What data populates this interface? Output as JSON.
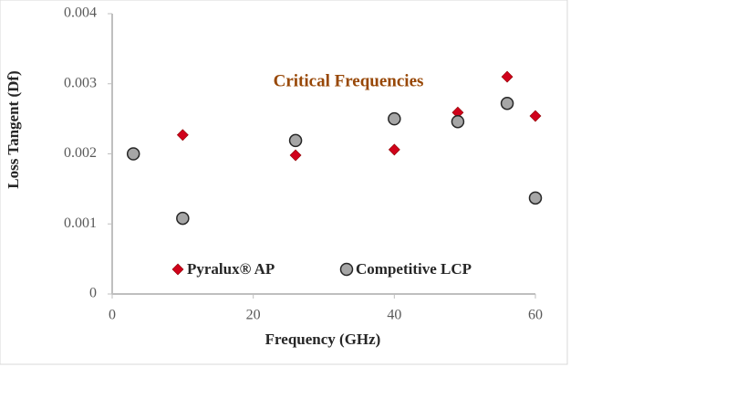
{
  "chart_data": {
    "type": "scatter",
    "title": "Critical Frequencies",
    "title_color": "#984807",
    "x_label": "Frequency (GHz)",
    "y_label": "Loss Tangent (Df)",
    "xlim": [
      0,
      60
    ],
    "xticks": [
      0,
      20,
      40,
      60
    ],
    "ylim": [
      0,
      0.004
    ],
    "yticks": [
      0,
      0.001,
      0.002,
      0.003,
      0.004
    ],
    "series": [
      {
        "name": "Pyralux® AP",
        "color": "#d0021b",
        "marker": "diamond",
        "x": [
          10,
          26,
          40,
          49,
          56,
          60
        ],
        "values": [
          0.00227,
          0.00198,
          0.00206,
          0.00259,
          0.0031,
          0.00254
        ]
      },
      {
        "name": "Competitive LCP",
        "color": "#a6a6a6",
        "marker": "circle",
        "x": [
          3,
          10,
          26,
          40,
          49,
          56,
          60
        ],
        "values": [
          0.002,
          0.00108,
          0.00219,
          0.0025,
          0.00246,
          0.00272,
          0.00137
        ]
      }
    ]
  }
}
